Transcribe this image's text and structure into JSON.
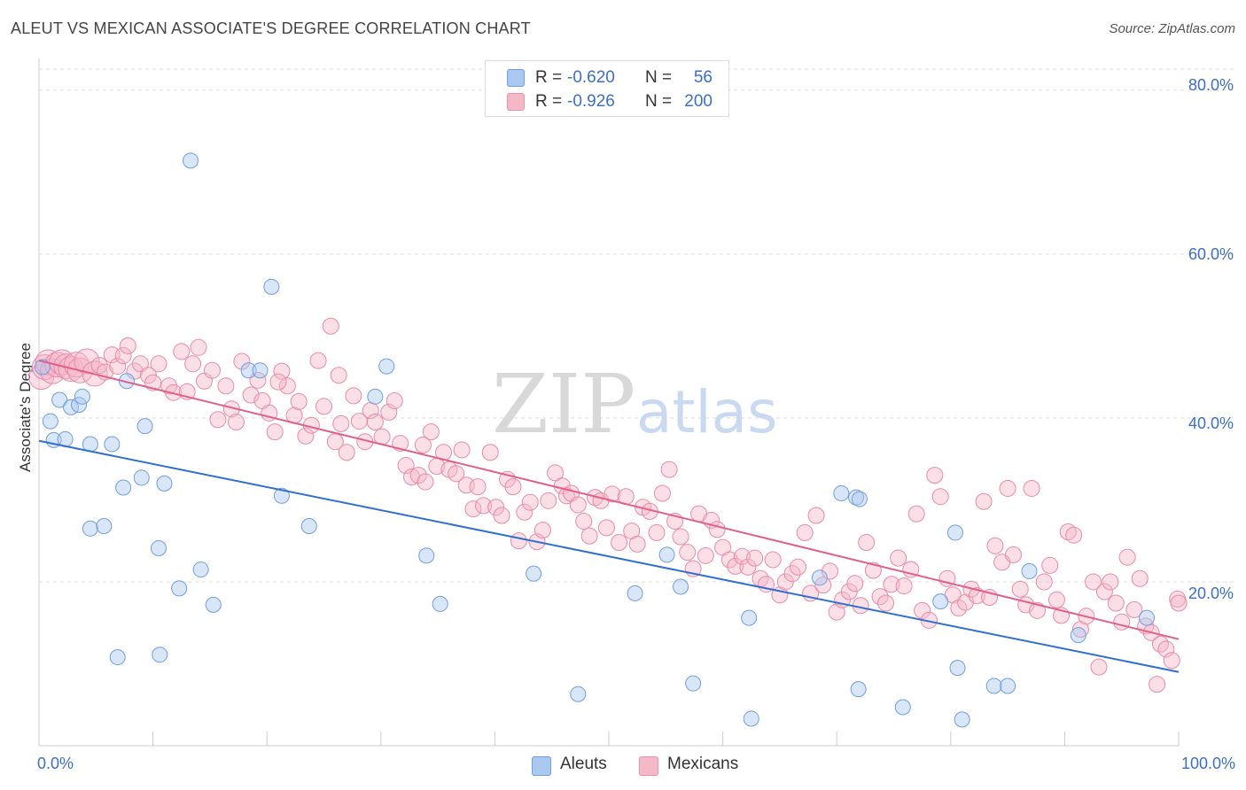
{
  "header": {
    "title": "ALEUT VS MEXICAN ASSOCIATE'S DEGREE CORRELATION CHART",
    "source": "Source: ZipAtlas.com"
  },
  "watermark": {
    "zip": "ZIP",
    "atlas": "atlas"
  },
  "legend": {
    "rows": [
      {
        "r_label": "R =",
        "r_value": "-0.620",
        "n_label": "N =",
        "n_value": "56",
        "color": "#aac8f0"
      },
      {
        "r_label": "R =",
        "r_value": "-0.926",
        "n_label": "N =",
        "n_value": "200",
        "color": "#f5b8c9"
      }
    ]
  },
  "bottom_legend": [
    {
      "label": "Aleuts",
      "color": "#aac8f0"
    },
    {
      "label": "Mexicans",
      "color": "#f5b8c9"
    }
  ],
  "axes": {
    "x_min_label": "0.0%",
    "x_max_label": "100.0%",
    "y_ticks": [
      "20.0%",
      "40.0%",
      "60.0%",
      "80.0%"
    ],
    "ylabel": "Associate's Degree"
  },
  "chart_data": {
    "type": "scatter",
    "title": "ALEUT VS MEXICAN ASSOCIATE'S DEGREE CORRELATION CHART",
    "xlabel": "",
    "ylabel": "Associate's Degree",
    "xlim": [
      0,
      100
    ],
    "ylim": [
      0,
      83
    ],
    "grid": true,
    "legend_position": "top-center",
    "series": [
      {
        "name": "Aleuts",
        "color": "#aac8f0",
        "trend_color": "#2e6fd0",
        "r": -0.62,
        "n": 56,
        "trend": {
          "x": [
            0,
            100
          ],
          "y": [
            37.2,
            9.0
          ]
        },
        "points": [
          [
            0.3,
            46.2
          ],
          [
            1.0,
            39.6
          ],
          [
            1.3,
            37.3
          ],
          [
            1.8,
            42.2
          ],
          [
            2.3,
            37.4
          ],
          [
            2.8,
            41.3
          ],
          [
            3.5,
            41.6
          ],
          [
            3.8,
            42.6
          ],
          [
            4.5,
            36.8
          ],
          [
            4.5,
            26.5
          ],
          [
            5.7,
            26.8
          ],
          [
            6.4,
            36.8
          ],
          [
            6.9,
            10.8
          ],
          [
            7.4,
            31.5
          ],
          [
            7.7,
            44.5
          ],
          [
            9.0,
            32.7
          ],
          [
            9.3,
            39.0
          ],
          [
            10.5,
            24.1
          ],
          [
            10.6,
            11.1
          ],
          [
            11.0,
            32.0
          ],
          [
            12.3,
            19.2
          ],
          [
            13.3,
            71.4
          ],
          [
            14.2,
            21.5
          ],
          [
            15.3,
            17.2
          ],
          [
            18.4,
            45.8
          ],
          [
            19.4,
            45.8
          ],
          [
            20.4,
            56.0
          ],
          [
            21.3,
            30.5
          ],
          [
            23.7,
            26.8
          ],
          [
            29.5,
            42.6
          ],
          [
            30.5,
            46.3
          ],
          [
            34.0,
            23.2
          ],
          [
            35.2,
            17.3
          ],
          [
            43.4,
            21.0
          ],
          [
            47.3,
            6.3
          ],
          [
            52.3,
            18.6
          ],
          [
            55.1,
            23.3
          ],
          [
            56.3,
            19.4
          ],
          [
            57.4,
            7.6
          ],
          [
            62.3,
            15.6
          ],
          [
            62.5,
            3.3
          ],
          [
            68.5,
            20.5
          ],
          [
            70.4,
            30.8
          ],
          [
            71.7,
            30.3
          ],
          [
            72.0,
            30.1
          ],
          [
            71.9,
            6.9
          ],
          [
            75.8,
            4.7
          ],
          [
            79.1,
            17.6
          ],
          [
            80.4,
            26.0
          ],
          [
            80.6,
            9.5
          ],
          [
            81.0,
            3.2
          ],
          [
            83.8,
            7.3
          ],
          [
            85.0,
            7.3
          ],
          [
            86.9,
            21.3
          ],
          [
            91.2,
            13.5
          ],
          [
            97.2,
            15.6
          ]
        ]
      },
      {
        "name": "Mexicans",
        "color": "#f5b8c9",
        "trend_color": "#e0608c",
        "r": -0.926,
        "n": 200,
        "trend": {
          "x": [
            0,
            100
          ],
          "y": [
            47.0,
            13.0
          ]
        },
        "points": [
          [
            0.2,
            45.0
          ],
          [
            0.5,
            46.2
          ],
          [
            0.8,
            46.8
          ],
          [
            1.2,
            45.7
          ],
          [
            1.6,
            46.5
          ],
          [
            2.0,
            46.8
          ],
          [
            2.4,
            46.3
          ],
          [
            2.8,
            46.0
          ],
          [
            3.3,
            46.5
          ],
          [
            3.6,
            45.8
          ],
          [
            4.2,
            46.9
          ],
          [
            4.9,
            45.4
          ],
          [
            5.3,
            46.4
          ],
          [
            5.8,
            45.6
          ],
          [
            6.4,
            47.7
          ],
          [
            6.9,
            46.3
          ],
          [
            7.4,
            47.6
          ],
          [
            7.8,
            48.8
          ],
          [
            8.4,
            45.7
          ],
          [
            8.9,
            46.6
          ],
          [
            9.6,
            45.2
          ],
          [
            10.0,
            44.3
          ],
          [
            10.5,
            46.6
          ],
          [
            11.4,
            43.9
          ],
          [
            11.8,
            43.1
          ],
          [
            12.5,
            48.1
          ],
          [
            13.0,
            43.2
          ],
          [
            13.5,
            46.6
          ],
          [
            14.0,
            48.6
          ],
          [
            14.5,
            44.5
          ],
          [
            15.2,
            45.8
          ],
          [
            15.7,
            39.8
          ],
          [
            16.4,
            43.9
          ],
          [
            16.9,
            41.1
          ],
          [
            17.3,
            39.5
          ],
          [
            17.8,
            46.9
          ],
          [
            18.6,
            42.8
          ],
          [
            19.2,
            44.6
          ],
          [
            19.6,
            42.1
          ],
          [
            20.2,
            40.6
          ],
          [
            20.7,
            38.3
          ],
          [
            21.3,
            45.7
          ],
          [
            21.8,
            43.9
          ],
          [
            22.4,
            40.3
          ],
          [
            22.8,
            42.0
          ],
          [
            23.4,
            37.8
          ],
          [
            23.9,
            39.1
          ],
          [
            24.5,
            47.0
          ],
          [
            25.0,
            41.4
          ],
          [
            25.6,
            51.2
          ],
          [
            26.0,
            37.1
          ],
          [
            26.5,
            39.3
          ],
          [
            27.0,
            35.8
          ],
          [
            27.6,
            42.7
          ],
          [
            28.1,
            39.6
          ],
          [
            28.6,
            37.1
          ],
          [
            29.1,
            40.9
          ],
          [
            29.5,
            39.5
          ],
          [
            30.1,
            37.7
          ],
          [
            30.7,
            40.7
          ],
          [
            31.2,
            42.1
          ],
          [
            31.7,
            36.9
          ],
          [
            32.2,
            34.2
          ],
          [
            32.7,
            32.8
          ],
          [
            33.3,
            33.0
          ],
          [
            33.9,
            32.2
          ],
          [
            34.4,
            38.3
          ],
          [
            34.9,
            34.1
          ],
          [
            35.5,
            35.8
          ],
          [
            36.0,
            33.7
          ],
          [
            36.6,
            33.2
          ],
          [
            37.1,
            36.1
          ],
          [
            37.5,
            31.8
          ],
          [
            38.1,
            28.9
          ],
          [
            38.5,
            31.6
          ],
          [
            39.0,
            29.3
          ],
          [
            39.6,
            35.8
          ],
          [
            40.1,
            29.1
          ],
          [
            40.6,
            28.1
          ],
          [
            41.1,
            32.5
          ],
          [
            41.6,
            31.6
          ],
          [
            42.1,
            25.0
          ],
          [
            42.6,
            28.5
          ],
          [
            43.1,
            29.7
          ],
          [
            43.7,
            24.9
          ],
          [
            44.2,
            26.3
          ],
          [
            44.7,
            29.9
          ],
          [
            45.3,
            33.3
          ],
          [
            45.9,
            31.7
          ],
          [
            46.3,
            30.5
          ],
          [
            46.7,
            30.8
          ],
          [
            47.3,
            29.4
          ],
          [
            47.8,
            27.4
          ],
          [
            48.3,
            25.6
          ],
          [
            48.8,
            30.3
          ],
          [
            49.3,
            29.9
          ],
          [
            49.8,
            26.6
          ],
          [
            50.3,
            30.7
          ],
          [
            50.9,
            24.8
          ],
          [
            51.5,
            30.4
          ],
          [
            52.0,
            26.2
          ],
          [
            52.5,
            24.6
          ],
          [
            53.0,
            29.1
          ],
          [
            53.6,
            28.6
          ],
          [
            54.2,
            26.0
          ],
          [
            54.7,
            30.8
          ],
          [
            55.3,
            33.7
          ],
          [
            55.8,
            27.4
          ],
          [
            56.3,
            25.5
          ],
          [
            56.9,
            23.6
          ],
          [
            57.4,
            21.6
          ],
          [
            57.9,
            28.3
          ],
          [
            58.5,
            23.2
          ],
          [
            59.0,
            27.5
          ],
          [
            59.5,
            26.4
          ],
          [
            60.0,
            24.2
          ],
          [
            60.6,
            22.7
          ],
          [
            61.1,
            21.9
          ],
          [
            61.7,
            23.1
          ],
          [
            62.2,
            21.8
          ],
          [
            62.8,
            22.9
          ],
          [
            63.3,
            20.4
          ],
          [
            63.8,
            19.7
          ],
          [
            64.4,
            22.7
          ],
          [
            65.0,
            18.4
          ],
          [
            65.5,
            20.0
          ],
          [
            66.1,
            21.0
          ],
          [
            66.6,
            21.8
          ],
          [
            67.2,
            26.0
          ],
          [
            67.7,
            18.6
          ],
          [
            68.2,
            28.1
          ],
          [
            68.8,
            19.6
          ],
          [
            69.4,
            21.3
          ],
          [
            70.0,
            16.3
          ],
          [
            70.5,
            17.8
          ],
          [
            71.1,
            18.8
          ],
          [
            71.6,
            19.8
          ],
          [
            72.1,
            17.1
          ],
          [
            72.6,
            24.8
          ],
          [
            73.2,
            21.4
          ],
          [
            73.8,
            18.2
          ],
          [
            74.3,
            17.4
          ],
          [
            74.8,
            19.7
          ],
          [
            75.4,
            22.9
          ],
          [
            75.9,
            19.5
          ],
          [
            76.5,
            21.5
          ],
          [
            77.0,
            28.3
          ],
          [
            77.5,
            16.5
          ],
          [
            78.1,
            15.3
          ],
          [
            78.6,
            33.0
          ],
          [
            79.1,
            30.4
          ],
          [
            79.7,
            20.4
          ],
          [
            80.2,
            18.4
          ],
          [
            80.7,
            16.8
          ],
          [
            81.3,
            17.5
          ],
          [
            81.8,
            19.1
          ],
          [
            82.3,
            18.3
          ],
          [
            82.9,
            29.8
          ],
          [
            83.4,
            18.1
          ],
          [
            83.9,
            24.4
          ],
          [
            84.5,
            22.4
          ],
          [
            85.0,
            31.4
          ],
          [
            85.5,
            23.3
          ],
          [
            86.1,
            19.1
          ],
          [
            86.6,
            17.2
          ],
          [
            87.1,
            31.4
          ],
          [
            87.6,
            16.5
          ],
          [
            88.2,
            20.0
          ],
          [
            88.7,
            22.0
          ],
          [
            89.3,
            17.8
          ],
          [
            89.7,
            15.9
          ],
          [
            90.3,
            26.1
          ],
          [
            90.8,
            25.7
          ],
          [
            91.4,
            14.2
          ],
          [
            91.9,
            15.8
          ],
          [
            92.5,
            20.0
          ],
          [
            93.0,
            9.6
          ],
          [
            93.5,
            18.8
          ],
          [
            94.0,
            20.0
          ],
          [
            94.5,
            17.4
          ],
          [
            95.0,
            15.1
          ],
          [
            95.5,
            23.0
          ],
          [
            96.1,
            16.6
          ],
          [
            96.6,
            20.4
          ],
          [
            97.1,
            14.6
          ],
          [
            97.6,
            13.8
          ],
          [
            98.1,
            7.5
          ],
          [
            98.4,
            12.4
          ],
          [
            98.9,
            11.8
          ],
          [
            99.4,
            10.4
          ],
          [
            99.9,
            17.9
          ],
          [
            100.0,
            17.4
          ],
          [
            21.0,
            44.4
          ],
          [
            26.3,
            45.2
          ],
          [
            33.7,
            36.7
          ]
        ]
      }
    ]
  }
}
